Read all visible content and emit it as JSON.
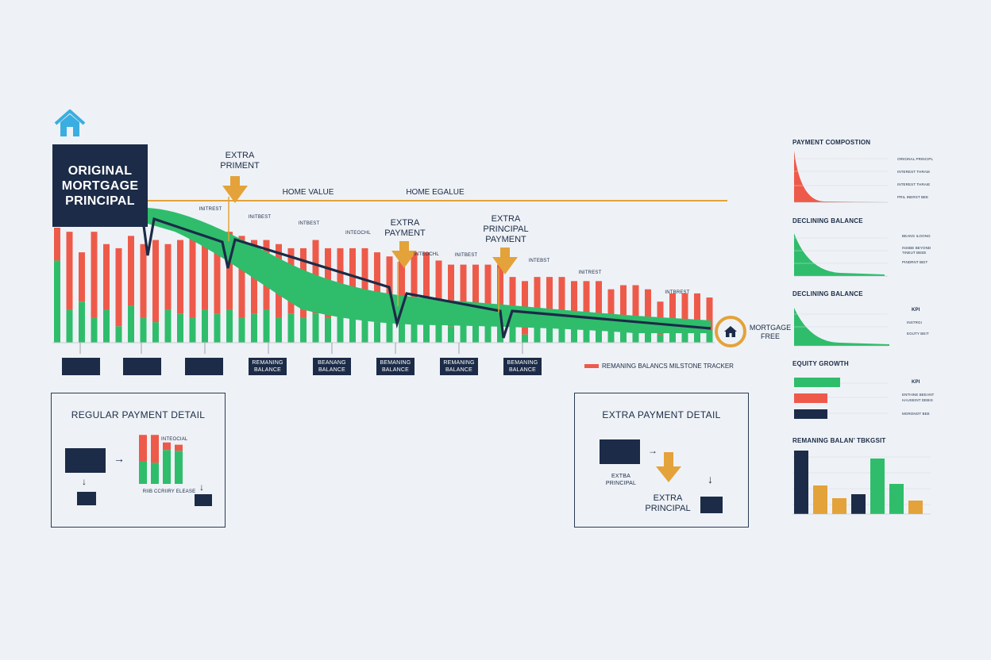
{
  "header": {
    "original_principal": "ORIGINAL\nMORTGAGE\nPRINCIPAL"
  },
  "annotations": {
    "extra_priment": "EXTRA\nPRIMENT",
    "extra_payment": "EXTRA\nPAYMENT",
    "extra_principal_payment": "EXTRA\nPRINCIPAL\nPAYMENT",
    "home_value": "HOME VALUE",
    "home_egalue": "HOME EGALUE",
    "mortgage_free": "MORTGAGE\nFREE",
    "interest_labels": [
      "INITREST",
      "INITBEST",
      "INTBEST",
      "INTEOCHL",
      "INTEOCHL",
      "INITBEST",
      "INTEBST",
      "INITREST",
      "INTBREST"
    ]
  },
  "milestones": [
    "",
    "",
    "",
    "REMANING\nBALANCE",
    "BEANANG\nBALANCE",
    "BEMANING\nBALANCE",
    "REMANING\nBALANCE",
    "BEMANING\nBALANCE"
  ],
  "legend": {
    "remaining": "REMANING BALANCS MILSTONE TRACKER"
  },
  "regular_detail": {
    "title": "REGULAR PAYMENT DETAIL",
    "bar_label": "INTEOCIAL",
    "bottom_label": "RIIB CCRIIRY ELEASE",
    "bars": [
      {
        "principal": 30,
        "interest": 35
      },
      {
        "principal": 28,
        "interest": 37
      },
      {
        "principal": 45,
        "interest": 10
      },
      {
        "principal": 44,
        "interest": 8
      }
    ]
  },
  "extra_detail": {
    "title": "EXTRA PAYMENT DETAIL",
    "small_label": "EXTBA\nPRINCIPAL",
    "big_label": "EXTRA\nPRINCIPAL"
  },
  "side_panels": {
    "composition": {
      "title": "PAYMENT COMPOSTION",
      "labels": [
        "ORIGINAL PRINCIPL",
        "INTEREST THRAM",
        "INTEREST THRAIE",
        "PRIL INERST BEE"
      ]
    },
    "declining1": {
      "title": "DECLINING BALANCE",
      "labels": [
        "BEANG ILOONG",
        "INSIBE BEYOND",
        "TINEUT BEEE",
        "PINDRNT BEIT"
      ]
    },
    "declining2": {
      "title": "DECLINING BALANCE",
      "kpi": "KPI",
      "labels": [
        "INSTRGI",
        "EGUTY BEIT"
      ]
    },
    "equity": {
      "title": "EQUITY GROWTH",
      "kpi": "KPI",
      "labels": [
        "ENTHINE BEEANT",
        "HAUSEINT DEBIS",
        "MORONOT BEE"
      ],
      "bars": [
        {
          "value": 58,
          "color": "#2fbd6c"
        },
        {
          "value": 42,
          "color": "#ee5a4a"
        },
        {
          "value": 42,
          "color": "#1c2b47"
        }
      ]
    },
    "remaining": {
      "title": "REMANING BALAN’ TBKGSIT",
      "bars": [
        {
          "value": 80,
          "color": "#1c2b47"
        },
        {
          "value": 36,
          "color": "#e4a23a"
        },
        {
          "value": 20,
          "color": "#e4a23a"
        },
        {
          "value": 25,
          "color": "#1c2b47"
        },
        {
          "value": 70,
          "color": "#2fbd6c"
        },
        {
          "value": 38,
          "color": "#2fbd6c"
        },
        {
          "value": 17,
          "color": "#e4a23a"
        }
      ]
    }
  },
  "colors": {
    "principal": "#2fbd6c",
    "interest": "#ee5a4a",
    "navy": "#1c2b47",
    "gold": "#e4a23a",
    "accent_blue": "#3aaee0"
  },
  "chart_data": {
    "type": "bar",
    "title": "",
    "series": [
      {
        "name": "principal",
        "values": [
          100,
          40,
          50,
          30,
          40,
          20,
          45,
          30,
          25,
          40,
          35,
          30,
          40,
          35,
          40,
          30,
          35,
          40,
          30,
          35,
          30,
          35,
          30,
          40,
          35,
          30,
          25,
          25,
          30,
          40,
          35,
          30,
          20,
          25,
          30,
          35,
          40,
          20,
          10,
          25,
          30,
          35,
          25,
          20,
          30,
          15,
          25,
          30,
          20,
          10,
          15,
          20,
          25,
          15,
          10
        ]
      },
      {
        "name": "interest",
        "values": [
          40,
          95,
          60,
          105,
          80,
          95,
          85,
          90,
          100,
          80,
          90,
          100,
          85,
          90,
          95,
          100,
          90,
          85,
          90,
          80,
          85,
          90,
          85,
          75,
          80,
          85,
          85,
          80,
          75,
          70,
          75,
          70,
          75,
          70,
          65,
          60,
          55,
          60,
          65,
          55,
          50,
          45,
          50,
          55,
          45,
          50,
          45,
          40,
          45,
          40,
          45,
          40,
          35,
          40,
          45
        ]
      }
    ],
    "balance_curve": [
      100,
      98,
      92,
      84,
      76,
      62,
      50,
      42,
      36,
      32,
      28,
      26
    ],
    "remaining_line": [
      100,
      99,
      73,
      82,
      63,
      63,
      52,
      47,
      35,
      37,
      25,
      26,
      20
    ]
  }
}
